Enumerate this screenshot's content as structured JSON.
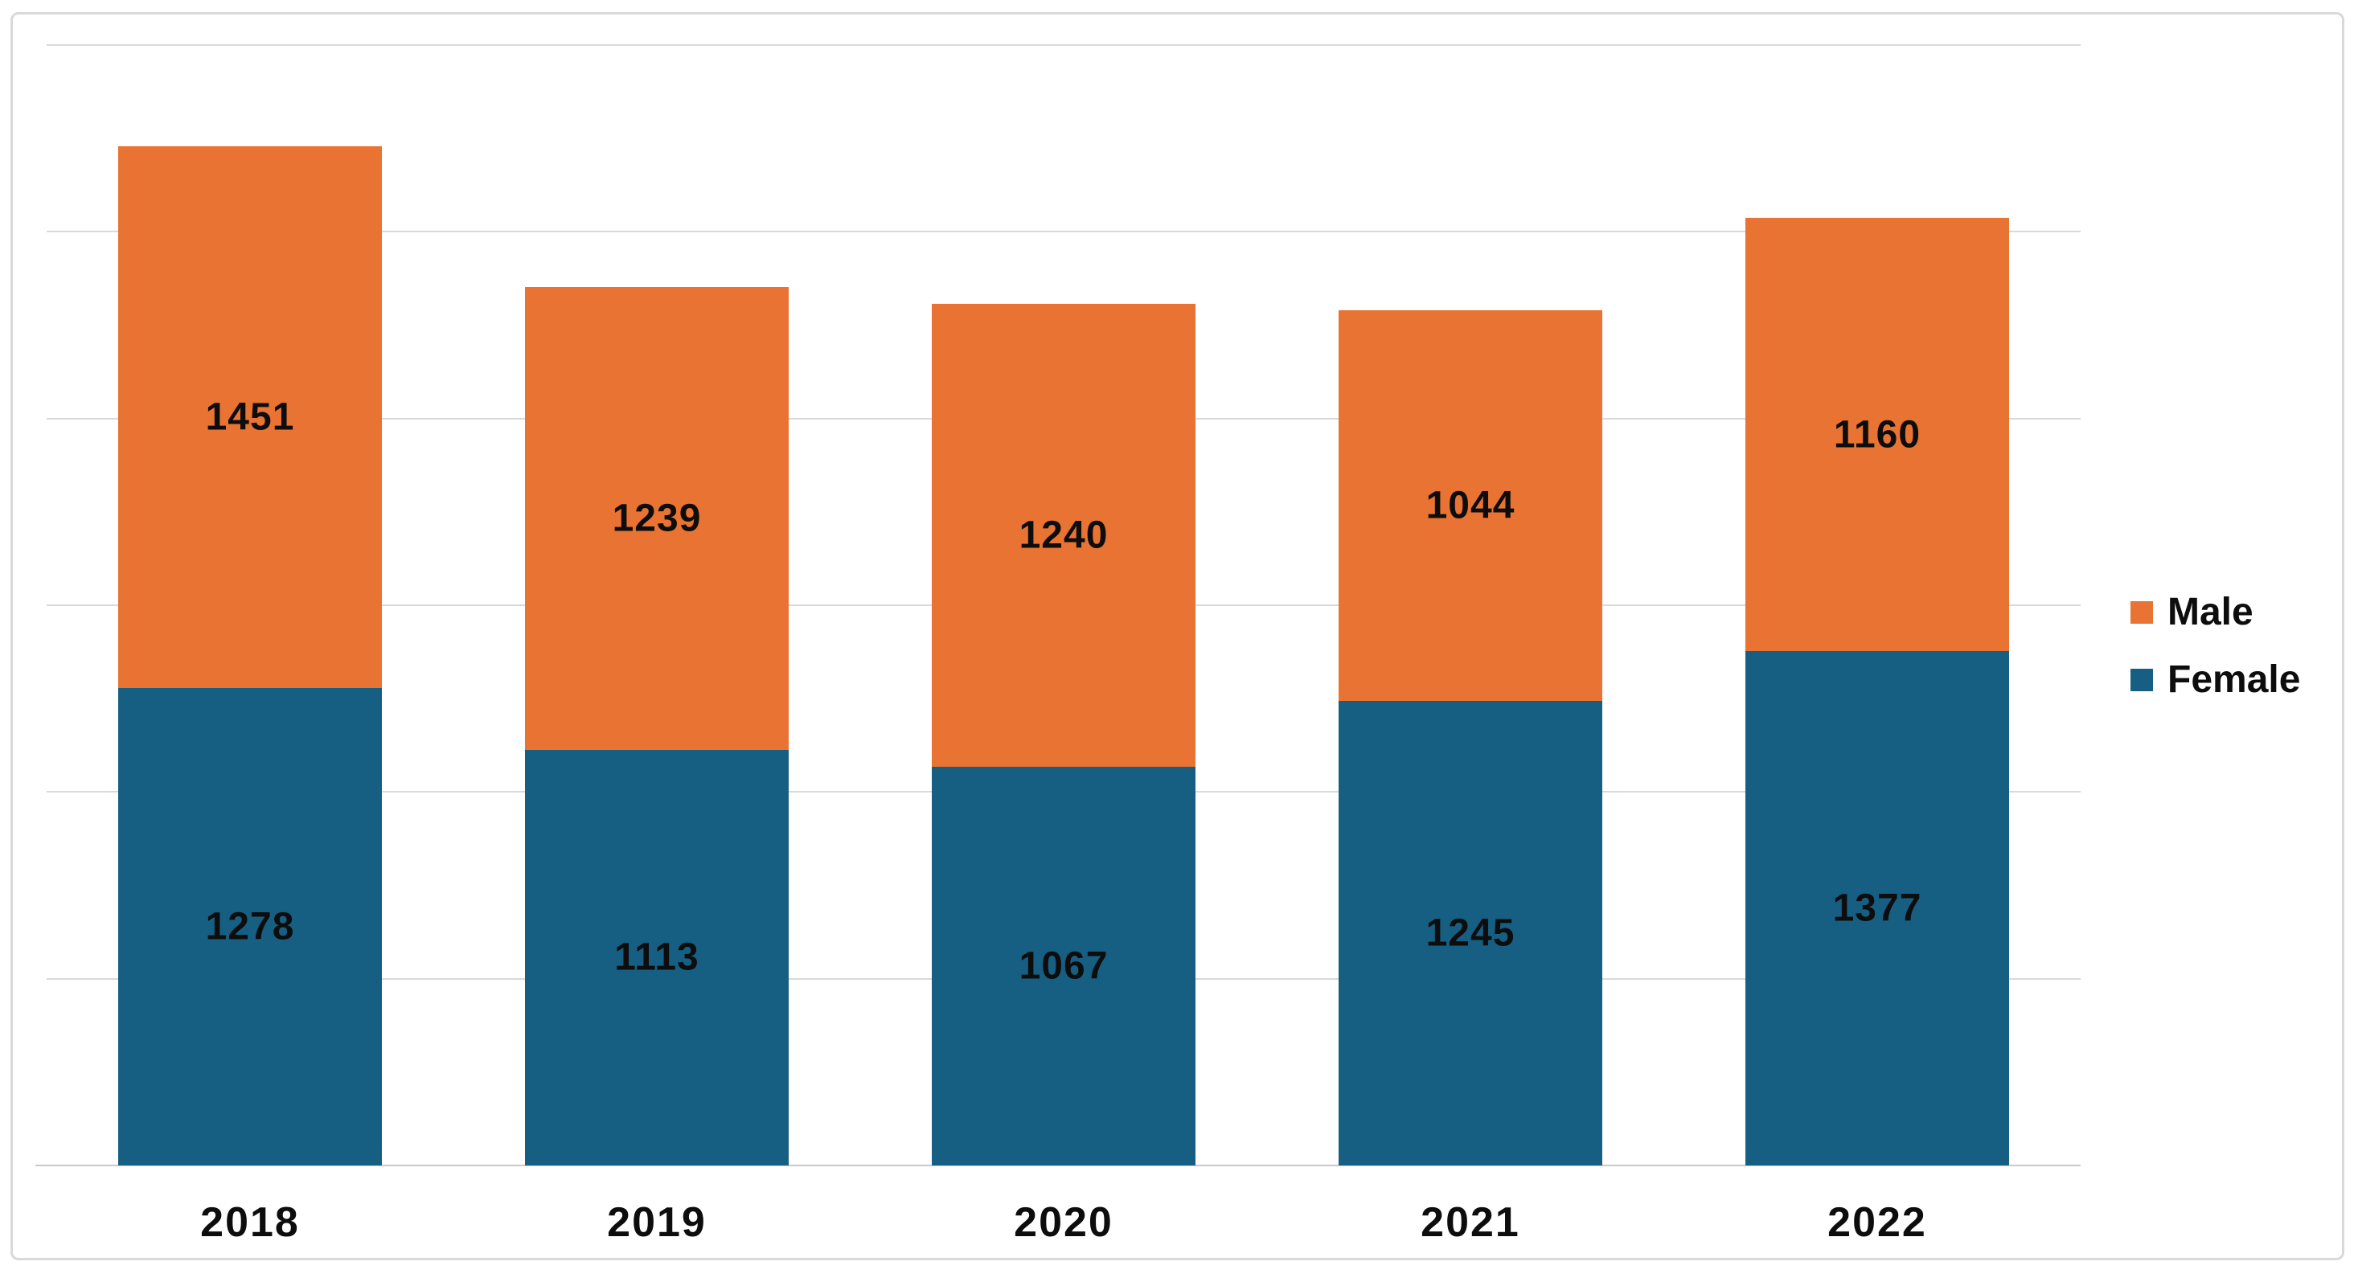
{
  "chart_data": {
    "type": "bar",
    "stacked": true,
    "title": "",
    "xlabel": "",
    "ylabel": "",
    "categories": [
      "2018",
      "2019",
      "2020",
      "2021",
      "2022"
    ],
    "series": [
      {
        "name": "Female",
        "color": "#165f82",
        "values": [
          1278,
          1113,
          1067,
          1245,
          1377
        ]
      },
      {
        "name": "Male",
        "color": "#e87332",
        "values": [
          1451,
          1239,
          1240,
          1044,
          1160
        ]
      }
    ],
    "data_labels_visible": true,
    "ylim": [
      0,
      3000
    ],
    "gridline_step": 500,
    "grid": true,
    "y_axis_labels_visible": false,
    "legend_position": "right",
    "legend_order": [
      "Male",
      "Female"
    ]
  },
  "colors": {
    "male": "#e87332",
    "female": "#165f82",
    "gridline": "#d9d9d9",
    "axis_line": "#c9c9c9",
    "frame_border": "#d9d9d9",
    "background": "#ffffff",
    "label_text": "#0d0d0d"
  }
}
